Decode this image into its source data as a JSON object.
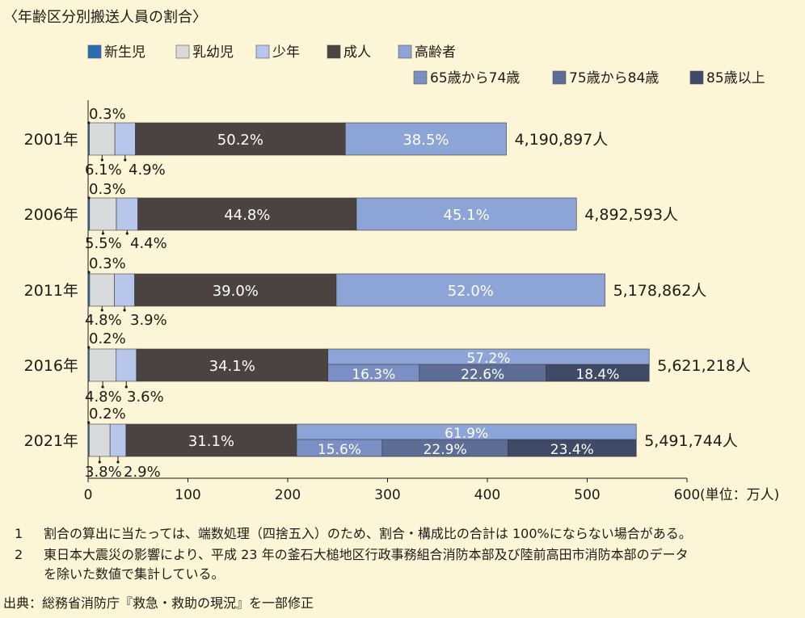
{
  "chart_data": {
    "type": "bar",
    "title": "〈年齢区分別搬送人員の割合〉",
    "unit_label": "(単位：万人)",
    "xlim": [
      0,
      600
    ],
    "x_ticks": [
      "0",
      "100",
      "200",
      "300",
      "400",
      "500",
      "600"
    ],
    "legend_main": [
      {
        "name": "新生児",
        "color": "#2a6db5"
      },
      {
        "name": "乳幼児",
        "color": "#d9dadb"
      },
      {
        "name": "少年",
        "color": "#b7c6ea"
      },
      {
        "name": "成人",
        "color": "#4a4341"
      },
      {
        "name": "高齢者",
        "color": "#8ca4d6"
      }
    ],
    "legend_elderly": [
      {
        "name": "65歳から74歳",
        "color": "#7b8fc4"
      },
      {
        "name": "75歳から84歳",
        "color": "#5d6d96"
      },
      {
        "name": "85歳以上",
        "color": "#3f4a66"
      }
    ],
    "categories": [
      "2001年",
      "2006年",
      "2011年",
      "2016年",
      "2021年"
    ],
    "totals_value": [
      419.0897,
      489.2593,
      517.8862,
      562.1218,
      549.1744
    ],
    "totals_label": [
      "4,190,897人",
      "4,892,593人",
      "5,178,862人",
      "5,621,218人",
      "5,491,744人"
    ],
    "series": [
      {
        "name": "新生児",
        "values": [
          0.3,
          0.3,
          0.3,
          0.2,
          0.2
        ],
        "labels": [
          "0.3%",
          "0.3%",
          "0.3%",
          "0.2%",
          "0.2%"
        ]
      },
      {
        "name": "乳幼児",
        "values": [
          6.1,
          5.5,
          4.8,
          4.8,
          3.8
        ],
        "labels": [
          "6.1%",
          "5.5%",
          "4.8%",
          "4.8%",
          "3.8%"
        ]
      },
      {
        "name": "少年",
        "values": [
          4.9,
          4.4,
          3.9,
          3.6,
          2.9
        ],
        "labels": [
          "4.9%",
          "4.4%",
          "3.9%",
          "3.6%",
          "2.9%"
        ]
      },
      {
        "name": "成人",
        "values": [
          50.2,
          44.8,
          39.0,
          34.1,
          31.1
        ],
        "labels": [
          "50.2%",
          "44.8%",
          "39.0%",
          "34.1%",
          "31.1%"
        ]
      },
      {
        "name": "高齢者",
        "values": [
          38.5,
          45.1,
          52.0,
          57.2,
          61.9
        ],
        "labels": [
          "38.5%",
          "45.1%",
          "52.0%",
          "57.2%",
          "61.9%"
        ]
      }
    ],
    "elderly_breakdown": [
      null,
      null,
      null,
      {
        "values": [
          16.3,
          22.6,
          18.4
        ],
        "labels": [
          "16.3%",
          "22.6%",
          "18.4%"
        ]
      },
      {
        "values": [
          15.6,
          22.9,
          23.4
        ],
        "labels": [
          "15.6%",
          "22.9%",
          "23.4%"
        ]
      }
    ]
  },
  "notes": [
    {
      "num": "1",
      "text": "割合の算出に当たっては、端数処理（四捨五入）のため、割合・構成比の合計は 100%にならない場合がある。"
    },
    {
      "num": "2",
      "text": "東日本大震災の影響により、平成 23 年の釜石大槌地区行政事務組合消防本部及び陸前高田市消防本部のデータ"
    },
    {
      "num": "",
      "text": "を除いた数値で集計している。"
    }
  ],
  "source": "出典：総務省消防庁『救急・救助の現況』を一部修正"
}
